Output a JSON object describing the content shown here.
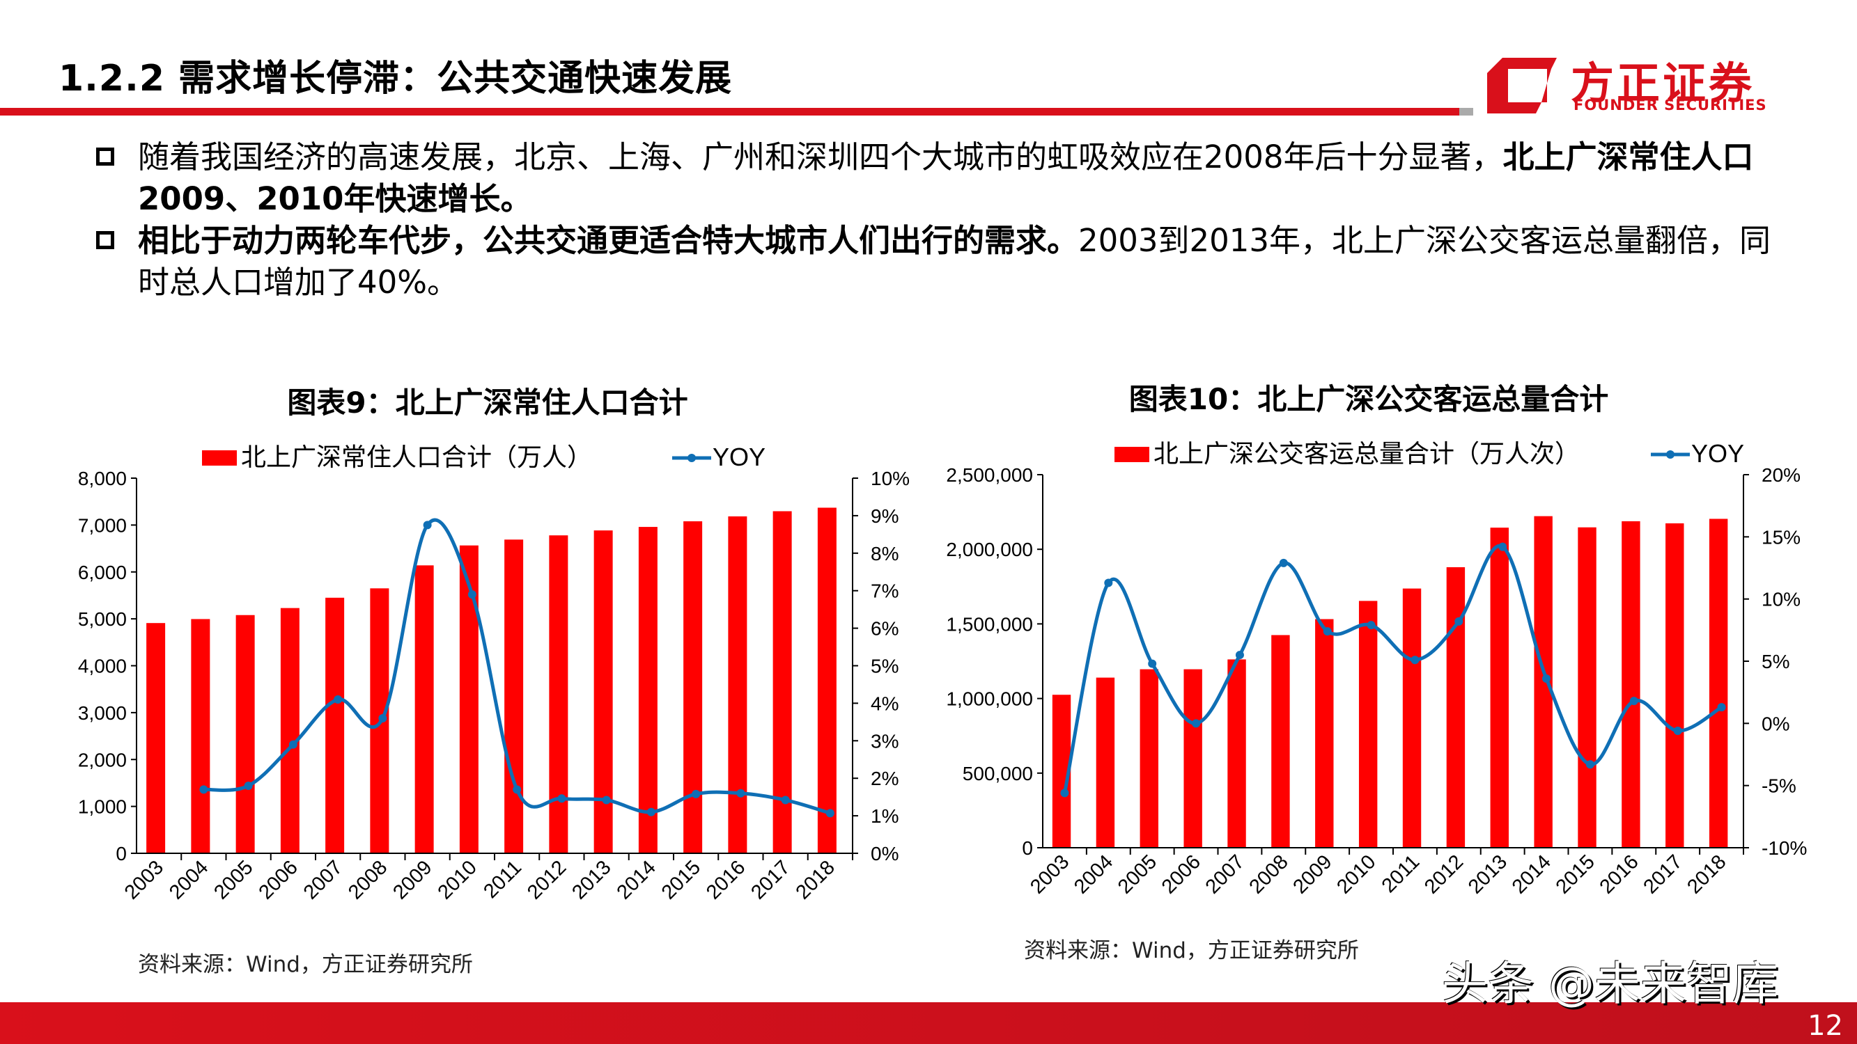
{
  "header": {
    "title": "1.2.2 需求增长停滞：公共交通快速发展",
    "logo_cn": "方正证券",
    "logo_en": "FOUNDER SECURITIES"
  },
  "bullets": [
    {
      "normal": "随着我国经济的高速发展，北京、上海、广州和深圳四个大城市的虹吸效应在2008年后十分显著，",
      "bold": "北上广深常住人口2009、2010年快速增长。"
    },
    {
      "bold": "相比于动力两轮车代步，公共交通更适合特大城市人们出行的需求。",
      "normal": "2003到2013年，北上广深公交客运总量翻倍，同时总人口增加了40%。"
    }
  ],
  "chart_data": [
    {
      "type": "bar",
      "title": "图表9：北上广深常住人口合计",
      "categories": [
        "2003",
        "2004",
        "2005",
        "2006",
        "2007",
        "2008",
        "2009",
        "2010",
        "2011",
        "2012",
        "2013",
        "2014",
        "2015",
        "2016",
        "2017",
        "2018"
      ],
      "series": [
        {
          "name": "北上广深常住人口合计（万人）",
          "type": "bar",
          "axis": "left",
          "values": [
            4910,
            4995,
            5080,
            5230,
            5450,
            5650,
            6140,
            6565,
            6690,
            6780,
            6885,
            6960,
            7080,
            7185,
            7295,
            7370
          ]
        },
        {
          "name": "YOY",
          "type": "line",
          "axis": "right",
          "values": [
            null,
            1.7,
            1.8,
            2.9,
            4.1,
            3.6,
            8.75,
            6.9,
            1.7,
            1.46,
            1.42,
            1.1,
            1.58,
            1.6,
            1.42,
            1.07
          ]
        }
      ],
      "ylim": [
        0,
        8000
      ],
      "yticks": [
        "0",
        "1,000",
        "2,000",
        "3,000",
        "4,000",
        "5,000",
        "6,000",
        "7,000",
        "8,000"
      ],
      "y2lim": [
        0,
        10
      ],
      "y2ticks": [
        "0%",
        "1%",
        "2%",
        "3%",
        "4%",
        "5%",
        "6%",
        "7%",
        "8%",
        "9%",
        "10%"
      ],
      "legend": "top",
      "source": "资料来源：Wind，方正证券研究所"
    },
    {
      "type": "bar",
      "title": "图表10：北上广深公交客运总量合计",
      "categories": [
        "2003",
        "2004",
        "2005",
        "2006",
        "2007",
        "2008",
        "2009",
        "2010",
        "2011",
        "2012",
        "2013",
        "2014",
        "2015",
        "2016",
        "2017",
        "2018"
      ],
      "series": [
        {
          "name": "北上广深公交客运总量合计（万人次）",
          "type": "bar",
          "axis": "left",
          "values": [
            1025000,
            1140000,
            1196000,
            1196000,
            1262000,
            1425000,
            1532000,
            1654000,
            1737000,
            1880000,
            2145000,
            2222000,
            2147000,
            2188000,
            2174000,
            2204000
          ]
        },
        {
          "name": "YOY",
          "type": "line",
          "axis": "right",
          "values": [
            -5.6,
            11.3,
            4.8,
            0.0,
            5.5,
            12.9,
            7.4,
            7.9,
            5.1,
            8.2,
            14.2,
            3.6,
            -3.3,
            1.8,
            -0.6,
            1.3
          ]
        }
      ],
      "ylim": [
        0,
        2500000
      ],
      "yticks": [
        "0",
        "500,000",
        "1,000,000",
        "1,500,000",
        "2,000,000",
        "2,500,000"
      ],
      "y2lim": [
        -10,
        20
      ],
      "y2ticks": [
        "-10%",
        "-5%",
        "0%",
        "5%",
        "10%",
        "15%",
        "20%"
      ],
      "legend": "top",
      "source": "资料来源：Wind，方正证券研究所"
    }
  ],
  "colors": {
    "brand": "#d9101b",
    "bar": "#ff0000",
    "line": "#0f6fb5"
  },
  "watermark": "头条 @未来智库",
  "page_number": "12"
}
